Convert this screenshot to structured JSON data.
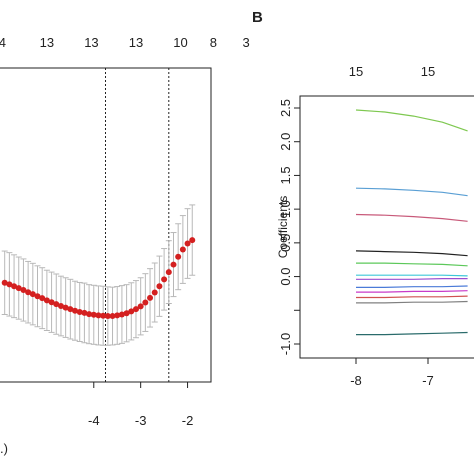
{
  "chart_data": [
    {
      "panel": "left",
      "type": "scatter",
      "panel_label": "",
      "xlabel_fragment": ".)",
      "top_counts": [
        "4",
        "13",
        "13",
        "13",
        "10",
        "8",
        "3"
      ],
      "top_count_x": [
        -5.95,
        -5.0,
        -4.05,
        -3.1,
        -2.15,
        -1.45,
        -0.75
      ],
      "xticks": [
        -4,
        -3,
        -2
      ],
      "xlim": [
        -6.0,
        -1.5
      ],
      "ylim": [
        0.0,
        1.0
      ],
      "vlines": [
        -3.75,
        -2.4
      ],
      "x": [
        -5.9,
        -5.8,
        -5.7,
        -5.6,
        -5.5,
        -5.4,
        -5.3,
        -5.2,
        -5.1,
        -5.0,
        -4.9,
        -4.8,
        -4.7,
        -4.6,
        -4.5,
        -4.4,
        -4.3,
        -4.2,
        -4.1,
        -4.0,
        -3.9,
        -3.8,
        -3.7,
        -3.6,
        -3.5,
        -3.4,
        -3.3,
        -3.2,
        -3.1,
        -3.0,
        -2.9,
        -2.8,
        -2.7,
        -2.6,
        -2.5,
        -2.4,
        -2.3,
        -2.2,
        -2.1,
        -2.0,
        -1.9
      ],
      "y": [
        0.316,
        0.311,
        0.305,
        0.299,
        0.293,
        0.286,
        0.28,
        0.273,
        0.267,
        0.26,
        0.254,
        0.248,
        0.242,
        0.237,
        0.232,
        0.227,
        0.223,
        0.22,
        0.216,
        0.214,
        0.212,
        0.211,
        0.21,
        0.21,
        0.212,
        0.215,
        0.219,
        0.225,
        0.232,
        0.241,
        0.253,
        0.268,
        0.285,
        0.305,
        0.327,
        0.35,
        0.374,
        0.399,
        0.422,
        0.441,
        0.452
      ],
      "err_low": [
        0.215,
        0.21,
        0.205,
        0.2,
        0.194,
        0.188,
        0.182,
        0.176,
        0.17,
        0.164,
        0.158,
        0.152,
        0.147,
        0.142,
        0.137,
        0.133,
        0.129,
        0.125,
        0.122,
        0.12,
        0.118,
        0.117,
        0.117,
        0.118,
        0.12,
        0.123,
        0.128,
        0.134,
        0.141,
        0.15,
        0.161,
        0.175,
        0.191,
        0.209,
        0.229,
        0.25,
        0.272,
        0.294,
        0.314,
        0.33,
        0.34
      ],
      "err_high": [
        0.417,
        0.412,
        0.405,
        0.398,
        0.392,
        0.384,
        0.378,
        0.37,
        0.364,
        0.356,
        0.35,
        0.344,
        0.337,
        0.332,
        0.327,
        0.321,
        0.317,
        0.315,
        0.31,
        0.308,
        0.306,
        0.305,
        0.303,
        0.302,
        0.304,
        0.307,
        0.31,
        0.316,
        0.323,
        0.332,
        0.345,
        0.361,
        0.379,
        0.401,
        0.425,
        0.45,
        0.476,
        0.504,
        0.53,
        0.552,
        0.564
      ],
      "point_color": "#d42020",
      "error_color": "#b8b8b8"
    },
    {
      "panel": "right",
      "type": "line",
      "panel_label": "B",
      "ylabel": "Coefficients",
      "top_counts": [
        "15",
        "15"
      ],
      "top_count_x": [
        -8.0,
        -7.0
      ],
      "xticks": [
        -8,
        -7
      ],
      "yticks": [
        2.5,
        2.0,
        1.5,
        1.0,
        0.5,
        0.0,
        -0.5,
        -1.0
      ],
      "ytick_labels": [
        "2.5",
        "2.0",
        "1.5",
        "1.0",
        "0.5",
        "0.0",
        "",
        "-1.0"
      ],
      "xlim": [
        -8.0,
        -6.2
      ],
      "ylim": [
        -1.0,
        2.5
      ],
      "x": [
        -8.0,
        -7.6,
        -7.2,
        -6.8,
        -6.45
      ],
      "series": [
        {
          "color": "#7ec850",
          "values": [
            2.47,
            2.44,
            2.38,
            2.29,
            2.16
          ]
        },
        {
          "color": "#5a9fd4",
          "values": [
            1.31,
            1.3,
            1.28,
            1.25,
            1.2
          ]
        },
        {
          "color": "#c85a7a",
          "values": [
            0.92,
            0.91,
            0.89,
            0.86,
            0.82
          ]
        },
        {
          "color": "#222222",
          "values": [
            0.38,
            0.37,
            0.36,
            0.34,
            0.31
          ]
        },
        {
          "color": "#5cc85a",
          "values": [
            0.2,
            0.2,
            0.19,
            0.18,
            0.16
          ]
        },
        {
          "color": "#3ec8d8",
          "values": [
            0.02,
            0.02,
            0.02,
            0.02,
            0.01
          ]
        },
        {
          "color": "#9a4fd0",
          "values": [
            -0.04,
            -0.04,
            -0.04,
            -0.03,
            -0.03
          ]
        },
        {
          "color": "#4a7ad8",
          "values": [
            -0.16,
            -0.16,
            -0.15,
            -0.15,
            -0.14
          ]
        },
        {
          "color": "#c83ac8",
          "values": [
            -0.23,
            -0.23,
            -0.22,
            -0.22,
            -0.21
          ]
        },
        {
          "color": "#d05050",
          "values": [
            -0.31,
            -0.31,
            -0.3,
            -0.3,
            -0.29
          ]
        },
        {
          "color": "#808080",
          "values": [
            -0.39,
            -0.39,
            -0.38,
            -0.38,
            -0.37
          ]
        },
        {
          "color": "#2a6b6b",
          "values": [
            -0.86,
            -0.86,
            -0.85,
            -0.84,
            -0.83
          ]
        }
      ]
    }
  ]
}
